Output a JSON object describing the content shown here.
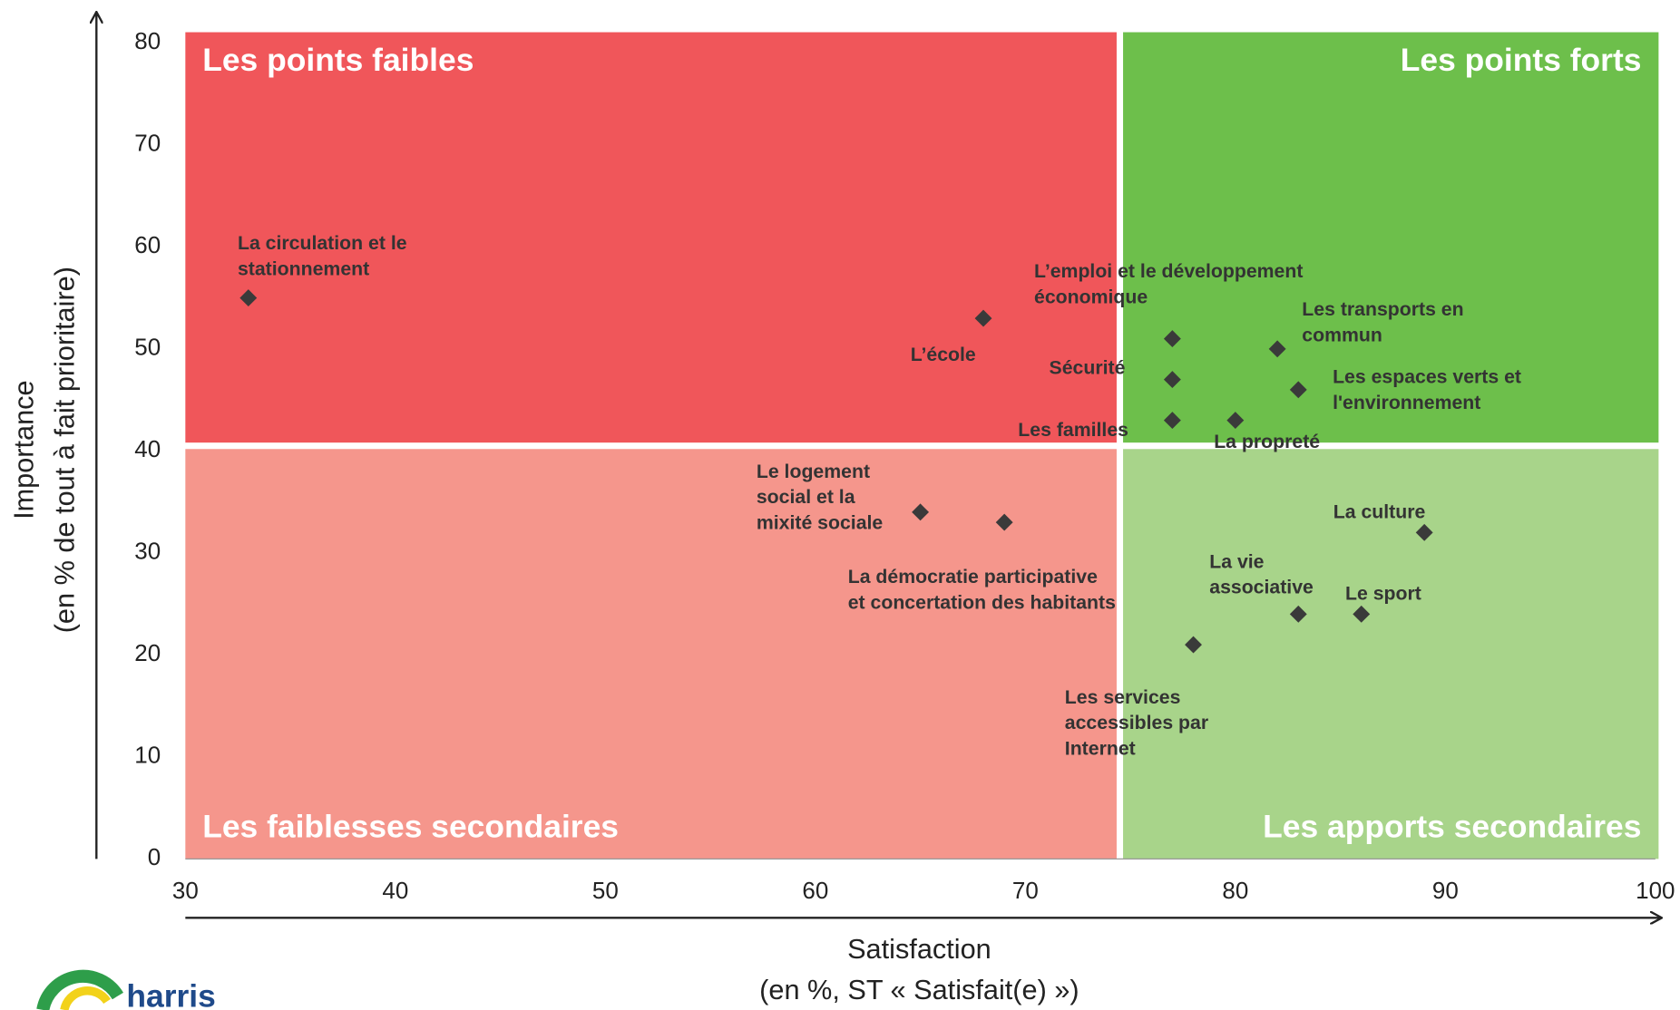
{
  "chart_data": {
    "type": "scatter",
    "xlabel": [
      "Satisfaction",
      "(en %, ST « Satisfait(e) »)"
    ],
    "ylabel": [
      "Importance",
      "(en % de tout à fait prioritaire)"
    ],
    "xlim": [
      30,
      100
    ],
    "xticks": [
      30,
      40,
      50,
      60,
      70,
      80,
      90,
      100
    ],
    "ylim": [
      0,
      80
    ],
    "yticks": [
      0,
      10,
      20,
      30,
      40,
      50,
      60,
      70,
      80
    ],
    "quadrant_split": {
      "x": 74.5,
      "y": 40.5
    },
    "quadrants": [
      {
        "label": "Les points faibles",
        "position": "top-left",
        "color": "#f0565a"
      },
      {
        "label": "Les points forts",
        "position": "top-right",
        "color": "#6dbf4b"
      },
      {
        "label": "Les faiblesses secondaires",
        "position": "bottom-left",
        "color": "#f5968c"
      },
      {
        "label": "Les apports secondaires",
        "position": "bottom-right",
        "color": "#a8d48a"
      }
    ],
    "marker_color": "#3a3a3a",
    "points": [
      {
        "label": [
          "La circulation et le",
          "stationnement"
        ],
        "x": 33,
        "y": 55
      },
      {
        "label": [
          "L’école"
        ],
        "x": 68,
        "y": 53
      },
      {
        "label": [
          "L’emploi et le développement",
          "économique"
        ],
        "x": 77,
        "y": 51
      },
      {
        "label": [
          "Sécurité"
        ],
        "x": 77,
        "y": 47
      },
      {
        "label": [
          "Les familles"
        ],
        "x": 77,
        "y": 43
      },
      {
        "label": [
          "La propreté"
        ],
        "x": 80,
        "y": 43
      },
      {
        "label": [
          "Les transports en",
          "commun"
        ],
        "x": 82,
        "y": 50
      },
      {
        "label": [
          "Les espaces verts et",
          "l'environnement"
        ],
        "x": 83,
        "y": 46
      },
      {
        "label": [
          "Le logement",
          "social et la",
          "mixité sociale"
        ],
        "x": 65,
        "y": 34
      },
      {
        "label": [
          "La démocratie participative",
          "et concertation des habitants"
        ],
        "x": 69,
        "y": 33
      },
      {
        "label": [
          "La culture"
        ],
        "x": 89,
        "y": 32
      },
      {
        "label": [
          "La vie",
          "associative"
        ],
        "x": 83,
        "y": 24
      },
      {
        "label": [
          "Le sport"
        ],
        "x": 86,
        "y": 24
      },
      {
        "label": [
          "Les services",
          "accessibles par",
          "Internet"
        ],
        "x": 78,
        "y": 21
      }
    ],
    "logo": "harris"
  }
}
